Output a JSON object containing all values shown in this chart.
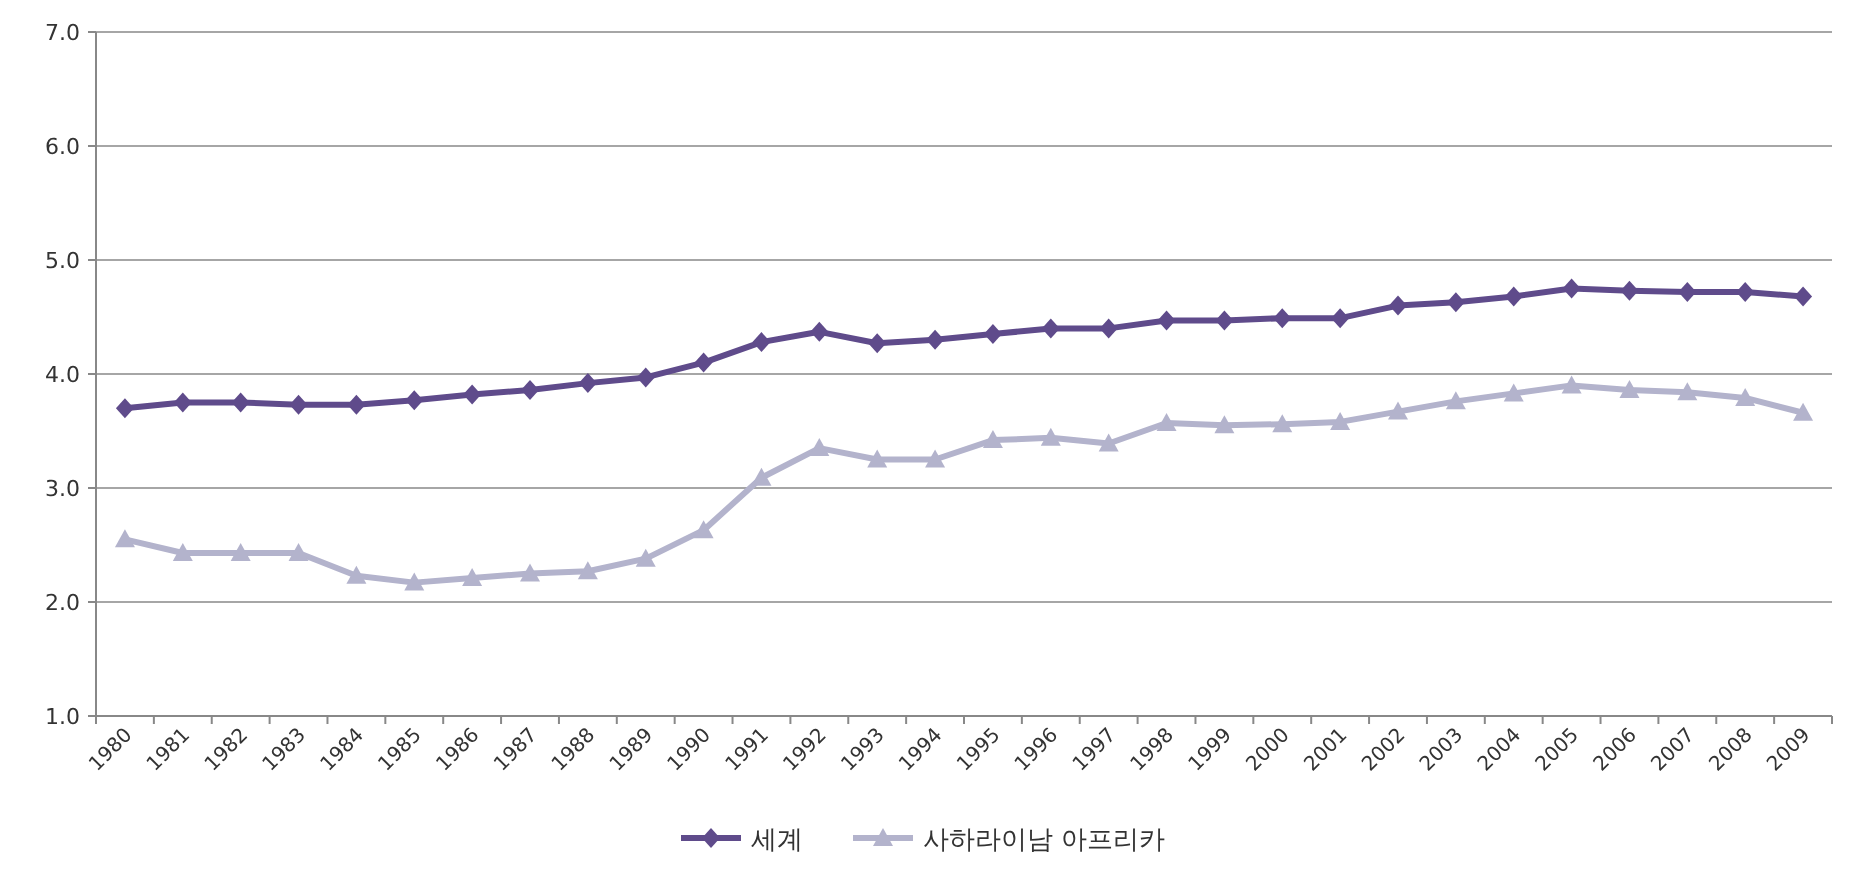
{
  "chart_data": {
    "type": "line",
    "categories": [
      "1980",
      "1981",
      "1982",
      "1983",
      "1984",
      "1985",
      "1986",
      "1987",
      "1988",
      "1989",
      "1990",
      "1991",
      "1992",
      "1993",
      "1994",
      "1995",
      "1996",
      "1997",
      "1998",
      "1999",
      "2000",
      "2001",
      "2002",
      "2003",
      "2004",
      "2005",
      "2006",
      "2007",
      "2008",
      "2009"
    ],
    "series": [
      {
        "name": "세계",
        "color": "#5f4b8b",
        "marker": "diamond",
        "values": [
          3.7,
          3.75,
          3.75,
          3.73,
          3.73,
          3.77,
          3.82,
          3.86,
          3.92,
          3.97,
          4.1,
          4.28,
          4.37,
          4.27,
          4.3,
          4.35,
          4.4,
          4.4,
          4.47,
          4.47,
          4.49,
          4.49,
          4.6,
          4.63,
          4.68,
          4.75,
          4.73,
          4.72,
          4.72,
          4.68
        ]
      },
      {
        "name": "사하라이남 아프리카",
        "color": "#b3b3cc",
        "marker": "triangle",
        "values": [
          2.55,
          2.43,
          2.43,
          2.43,
          2.23,
          2.17,
          2.21,
          2.25,
          2.27,
          2.38,
          2.63,
          3.09,
          3.35,
          3.25,
          3.25,
          3.42,
          3.44,
          3.39,
          3.57,
          3.55,
          3.56,
          3.58,
          3.67,
          3.76,
          3.83,
          3.9,
          3.86,
          3.84,
          3.79,
          3.66
        ]
      }
    ],
    "ylim": [
      1,
      7
    ],
    "yticks": [
      {
        "value": 1,
        "label": "1.0"
      },
      {
        "value": 2,
        "label": "2.0"
      },
      {
        "value": 3,
        "label": "3.0"
      },
      {
        "value": 4,
        "label": "4.0"
      },
      {
        "value": 5,
        "label": "5.0"
      },
      {
        "value": 6,
        "label": "6.0"
      },
      {
        "value": 7,
        "label": "7.0"
      }
    ],
    "grid": "y",
    "legend": "bottom",
    "line_style": "solid"
  }
}
